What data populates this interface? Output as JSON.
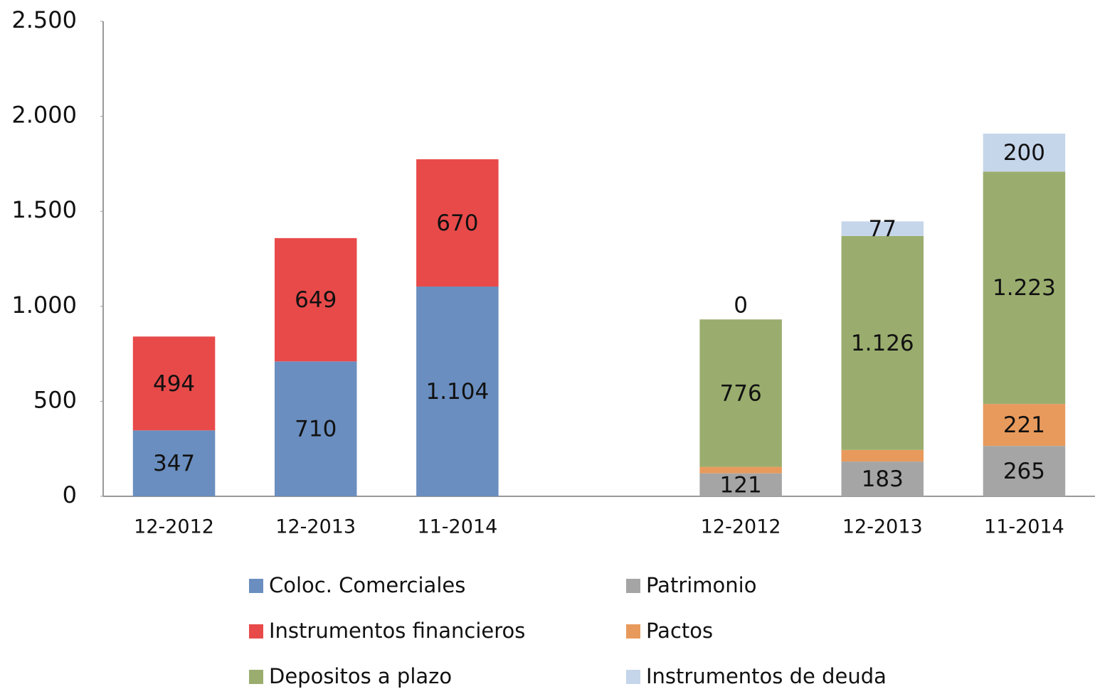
{
  "chart_data": {
    "type": "stacked_bar",
    "categories": [
      "12-2012",
      "12-2013",
      "11-2014",
      null,
      "12-2012",
      "12-2013",
      "11-2014"
    ],
    "series": [
      {
        "name": "Coloc. Comerciales",
        "color": "#6a8ebf",
        "values": [
          347,
          710,
          1104,
          null,
          null,
          null,
          null
        ],
        "value_labels": [
          "347",
          "710",
          "1.104",
          null,
          null,
          null,
          null
        ]
      },
      {
        "name": "Instrumentos financieros",
        "color": "#e84a4a",
        "values": [
          494,
          649,
          670,
          null,
          null,
          null,
          null
        ]
      },
      {
        "name": "Patrimonio",
        "color": "#a5a5a5",
        "values": [
          null,
          null,
          null,
          null,
          121,
          183,
          265
        ]
      },
      {
        "name": "Pactos",
        "color": "#e89a5c",
        "values": [
          null,
          null,
          null,
          null,
          34,
          61,
          221
        ]
      },
      {
        "name": "Depositos a plazo",
        "color": "#9aad6e",
        "values": [
          null,
          null,
          null,
          null,
          776,
          1126,
          1223
        ],
        "value_labels": [
          null,
          null,
          null,
          null,
          "776",
          "1.126",
          "1.223"
        ]
      },
      {
        "name": "Instrumentos de deuda",
        "color": "#c5d5ea",
        "values": [
          null,
          null,
          null,
          null,
          0,
          77,
          200
        ]
      }
    ],
    "legend_order": [
      0,
      2,
      1,
      3,
      4,
      5
    ],
    "ylim": [
      0,
      2500
    ],
    "yticks": [
      0,
      500,
      {
        "value": 1000,
        "label": "1.000"
      },
      {
        "value": 1500,
        "label": "1.500"
      },
      {
        "value": 2000,
        "label": "2.000"
      },
      {
        "value": 2500,
        "label": "2.500"
      }
    ],
    "grid": false
  }
}
